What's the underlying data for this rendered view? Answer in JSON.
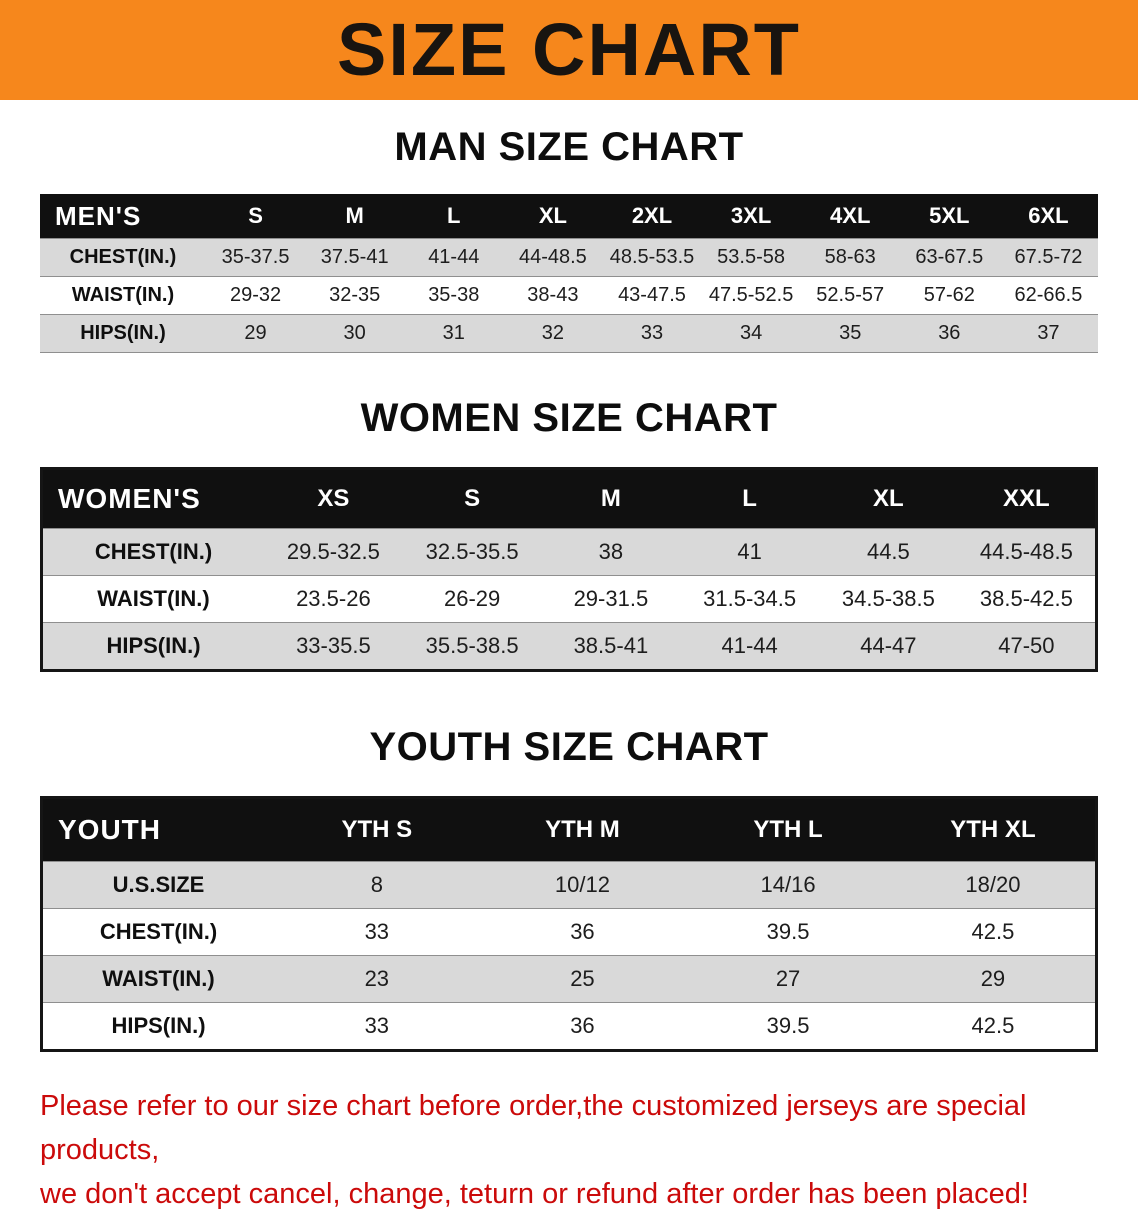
{
  "banner": {
    "title": "SIZE CHART"
  },
  "colors": {
    "banner_bg": "#F6871C",
    "header_bg": "#101010",
    "row_gray": "#D9D9D9",
    "disclaimer_red": "#CB0A0A"
  },
  "sections": [
    {
      "id": "men",
      "heading": "MAN SIZE CHART",
      "table": {
        "header": [
          "MEN'S",
          "S",
          "M",
          "L",
          "XL",
          "2XL",
          "3XL",
          "4XL",
          "5XL",
          "6XL"
        ],
        "rows": [
          [
            "CHEST(IN.)",
            "35-37.5",
            "37.5-41",
            "41-44",
            "44-48.5",
            "48.5-53.5",
            "53.5-58",
            "58-63",
            "63-67.5",
            "67.5-72"
          ],
          [
            "WAIST(IN.)",
            "29-32",
            "32-35",
            "35-38",
            "38-43",
            "43-47.5",
            "47.5-52.5",
            "52.5-57",
            "57-62",
            "62-66.5"
          ],
          [
            "HIPS(IN.)",
            "29",
            "30",
            "31",
            "32",
            "33",
            "34",
            "35",
            "36",
            "37"
          ]
        ]
      }
    },
    {
      "id": "women",
      "heading": "WOMEN SIZE CHART",
      "table": {
        "header": [
          "WOMEN'S",
          "XS",
          "S",
          "M",
          "L",
          "XL",
          "XXL"
        ],
        "rows": [
          [
            "CHEST(IN.)",
            "29.5-32.5",
            "32.5-35.5",
            "38",
            "41",
            "44.5",
            "44.5-48.5"
          ],
          [
            "WAIST(IN.)",
            "23.5-26",
            "26-29",
            "29-31.5",
            "31.5-34.5",
            "34.5-38.5",
            "38.5-42.5"
          ],
          [
            "HIPS(IN.)",
            "33-35.5",
            "35.5-38.5",
            "38.5-41",
            "41-44",
            "44-47",
            "47-50"
          ]
        ]
      }
    },
    {
      "id": "youth",
      "heading": "YOUTH SIZE CHART",
      "table": {
        "header": [
          "YOUTH",
          "YTH S",
          "YTH M",
          "YTH L",
          "YTH XL"
        ],
        "rows": [
          [
            "U.S.SIZE",
            "8",
            "10/12",
            "14/16",
            "18/20"
          ],
          [
            "CHEST(IN.)",
            "33",
            "36",
            "39.5",
            "42.5"
          ],
          [
            "WAIST(IN.)",
            "23",
            "25",
            "27",
            "29"
          ],
          [
            "HIPS(IN.)",
            "33",
            "36",
            "39.5",
            "42.5"
          ]
        ]
      }
    }
  ],
  "disclaimer": {
    "lines": [
      "Please refer to our size chart before order,the customized jerseys are special products,",
      "we don't accept cancel, change, teturn or refund after order has been placed!"
    ]
  }
}
